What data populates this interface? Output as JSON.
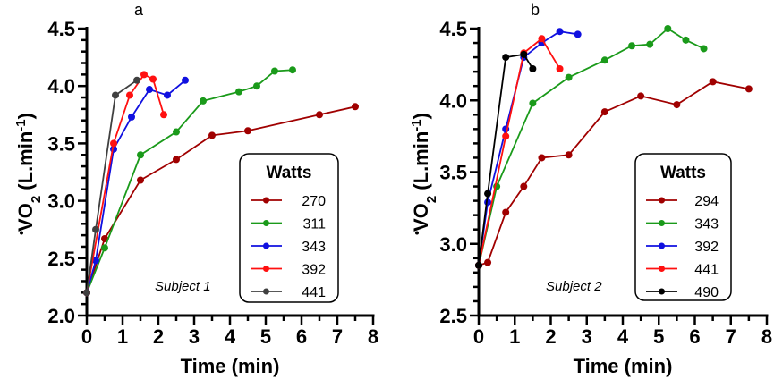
{
  "chart_data": [
    {
      "type": "line",
      "panel_label": "a",
      "annotation": "Subject 1",
      "xlabel": "Time (min)",
      "ylabel": "VO2 (L.min-1)",
      "ylabel_parts": {
        "v": "V",
        "o": "O",
        "sub": "2",
        "rest": " (L.min",
        "sup": "-1",
        "close": ")"
      },
      "xlim": [
        0,
        8
      ],
      "ylim": [
        2.0,
        4.5
      ],
      "xticks": [
        "0",
        "1",
        "2",
        "3",
        "4",
        "5",
        "6",
        "7",
        "8"
      ],
      "yticks": [
        "2.0",
        "2.5",
        "3.0",
        "3.5",
        "4.0",
        "4.5"
      ],
      "legend_title": "Watts",
      "legend_position": "bottom-right",
      "series": [
        {
          "name": "270",
          "color": "#a00000",
          "x": [
            0,
            0.5,
            1.5,
            2.5,
            3.5,
            4.5,
            6.5,
            7.5
          ],
          "y": [
            2.2,
            2.67,
            3.18,
            3.36,
            3.57,
            3.61,
            3.75,
            3.82
          ]
        },
        {
          "name": "311",
          "color": "#1a9a1a",
          "x": [
            0,
            0.5,
            1.5,
            2.5,
            3.25,
            4.25,
            4.75,
            5.25,
            5.75
          ],
          "y": [
            2.2,
            2.59,
            3.4,
            3.6,
            3.87,
            3.95,
            4.0,
            4.13,
            4.14
          ]
        },
        {
          "name": "343",
          "color": "#1010e0",
          "x": [
            0,
            0.25,
            0.75,
            1.25,
            1.75,
            2.25,
            2.75
          ],
          "y": [
            2.2,
            2.48,
            3.45,
            3.73,
            3.97,
            3.92,
            4.05
          ]
        },
        {
          "name": "392",
          "color": "#ff1010",
          "x": [
            0,
            0.75,
            1.2,
            1.6,
            1.85,
            2.15
          ],
          "y": [
            2.2,
            3.5,
            3.92,
            4.1,
            4.06,
            3.75
          ]
        },
        {
          "name": "441",
          "color": "#404040",
          "x": [
            0,
            0.25,
            0.8,
            1.4
          ],
          "y": [
            2.2,
            2.75,
            3.92,
            4.05
          ]
        }
      ]
    },
    {
      "type": "line",
      "panel_label": "b",
      "annotation": "Subject 2",
      "xlabel": "Time (min)",
      "ylabel": "VO2 (L.min-1)",
      "ylabel_parts": {
        "v": "V",
        "o": "O",
        "sub": "2",
        "rest": " (L.min",
        "sup": "-1",
        "close": ")"
      },
      "xlim": [
        0,
        8
      ],
      "ylim": [
        2.5,
        4.5
      ],
      "xticks": [
        "0",
        "1",
        "2",
        "3",
        "4",
        "5",
        "6",
        "7",
        "8"
      ],
      "yticks": [
        "2.5",
        "3.0",
        "3.5",
        "4.0",
        "4.5"
      ],
      "legend_title": "Watts",
      "legend_position": "bottom-right",
      "series": [
        {
          "name": "294",
          "color": "#a00000",
          "x": [
            0,
            0.25,
            0.75,
            1.25,
            1.75,
            2.5,
            3.5,
            4.5,
            5.5,
            6.5,
            7.5
          ],
          "y": [
            2.85,
            2.87,
            3.22,
            3.4,
            3.6,
            3.62,
            3.92,
            4.03,
            3.97,
            4.13,
            4.08
          ]
        },
        {
          "name": "343",
          "color": "#1a9a1a",
          "x": [
            0,
            0.5,
            1.5,
            2.5,
            3.5,
            4.25,
            4.75,
            5.25,
            5.75,
            6.25
          ],
          "y": [
            2.85,
            3.4,
            3.98,
            4.16,
            4.28,
            4.38,
            4.39,
            4.5,
            4.42,
            4.36
          ]
        },
        {
          "name": "392",
          "color": "#1010e0",
          "x": [
            0,
            0.25,
            0.75,
            1.25,
            1.75,
            2.25,
            2.75
          ],
          "y": [
            2.85,
            3.29,
            3.8,
            4.3,
            4.4,
            4.48,
            4.46
          ]
        },
        {
          "name": "441",
          "color": "#ff1010",
          "x": [
            0,
            0.75,
            1.25,
            1.75,
            2.25
          ],
          "y": [
            2.85,
            3.75,
            4.33,
            4.43,
            4.22
          ]
        },
        {
          "name": "490",
          "color": "#000000",
          "x": [
            0,
            0.25,
            0.75,
            1.25,
            1.5
          ],
          "y": [
            2.85,
            3.35,
            4.3,
            4.32,
            4.22
          ]
        }
      ]
    }
  ]
}
